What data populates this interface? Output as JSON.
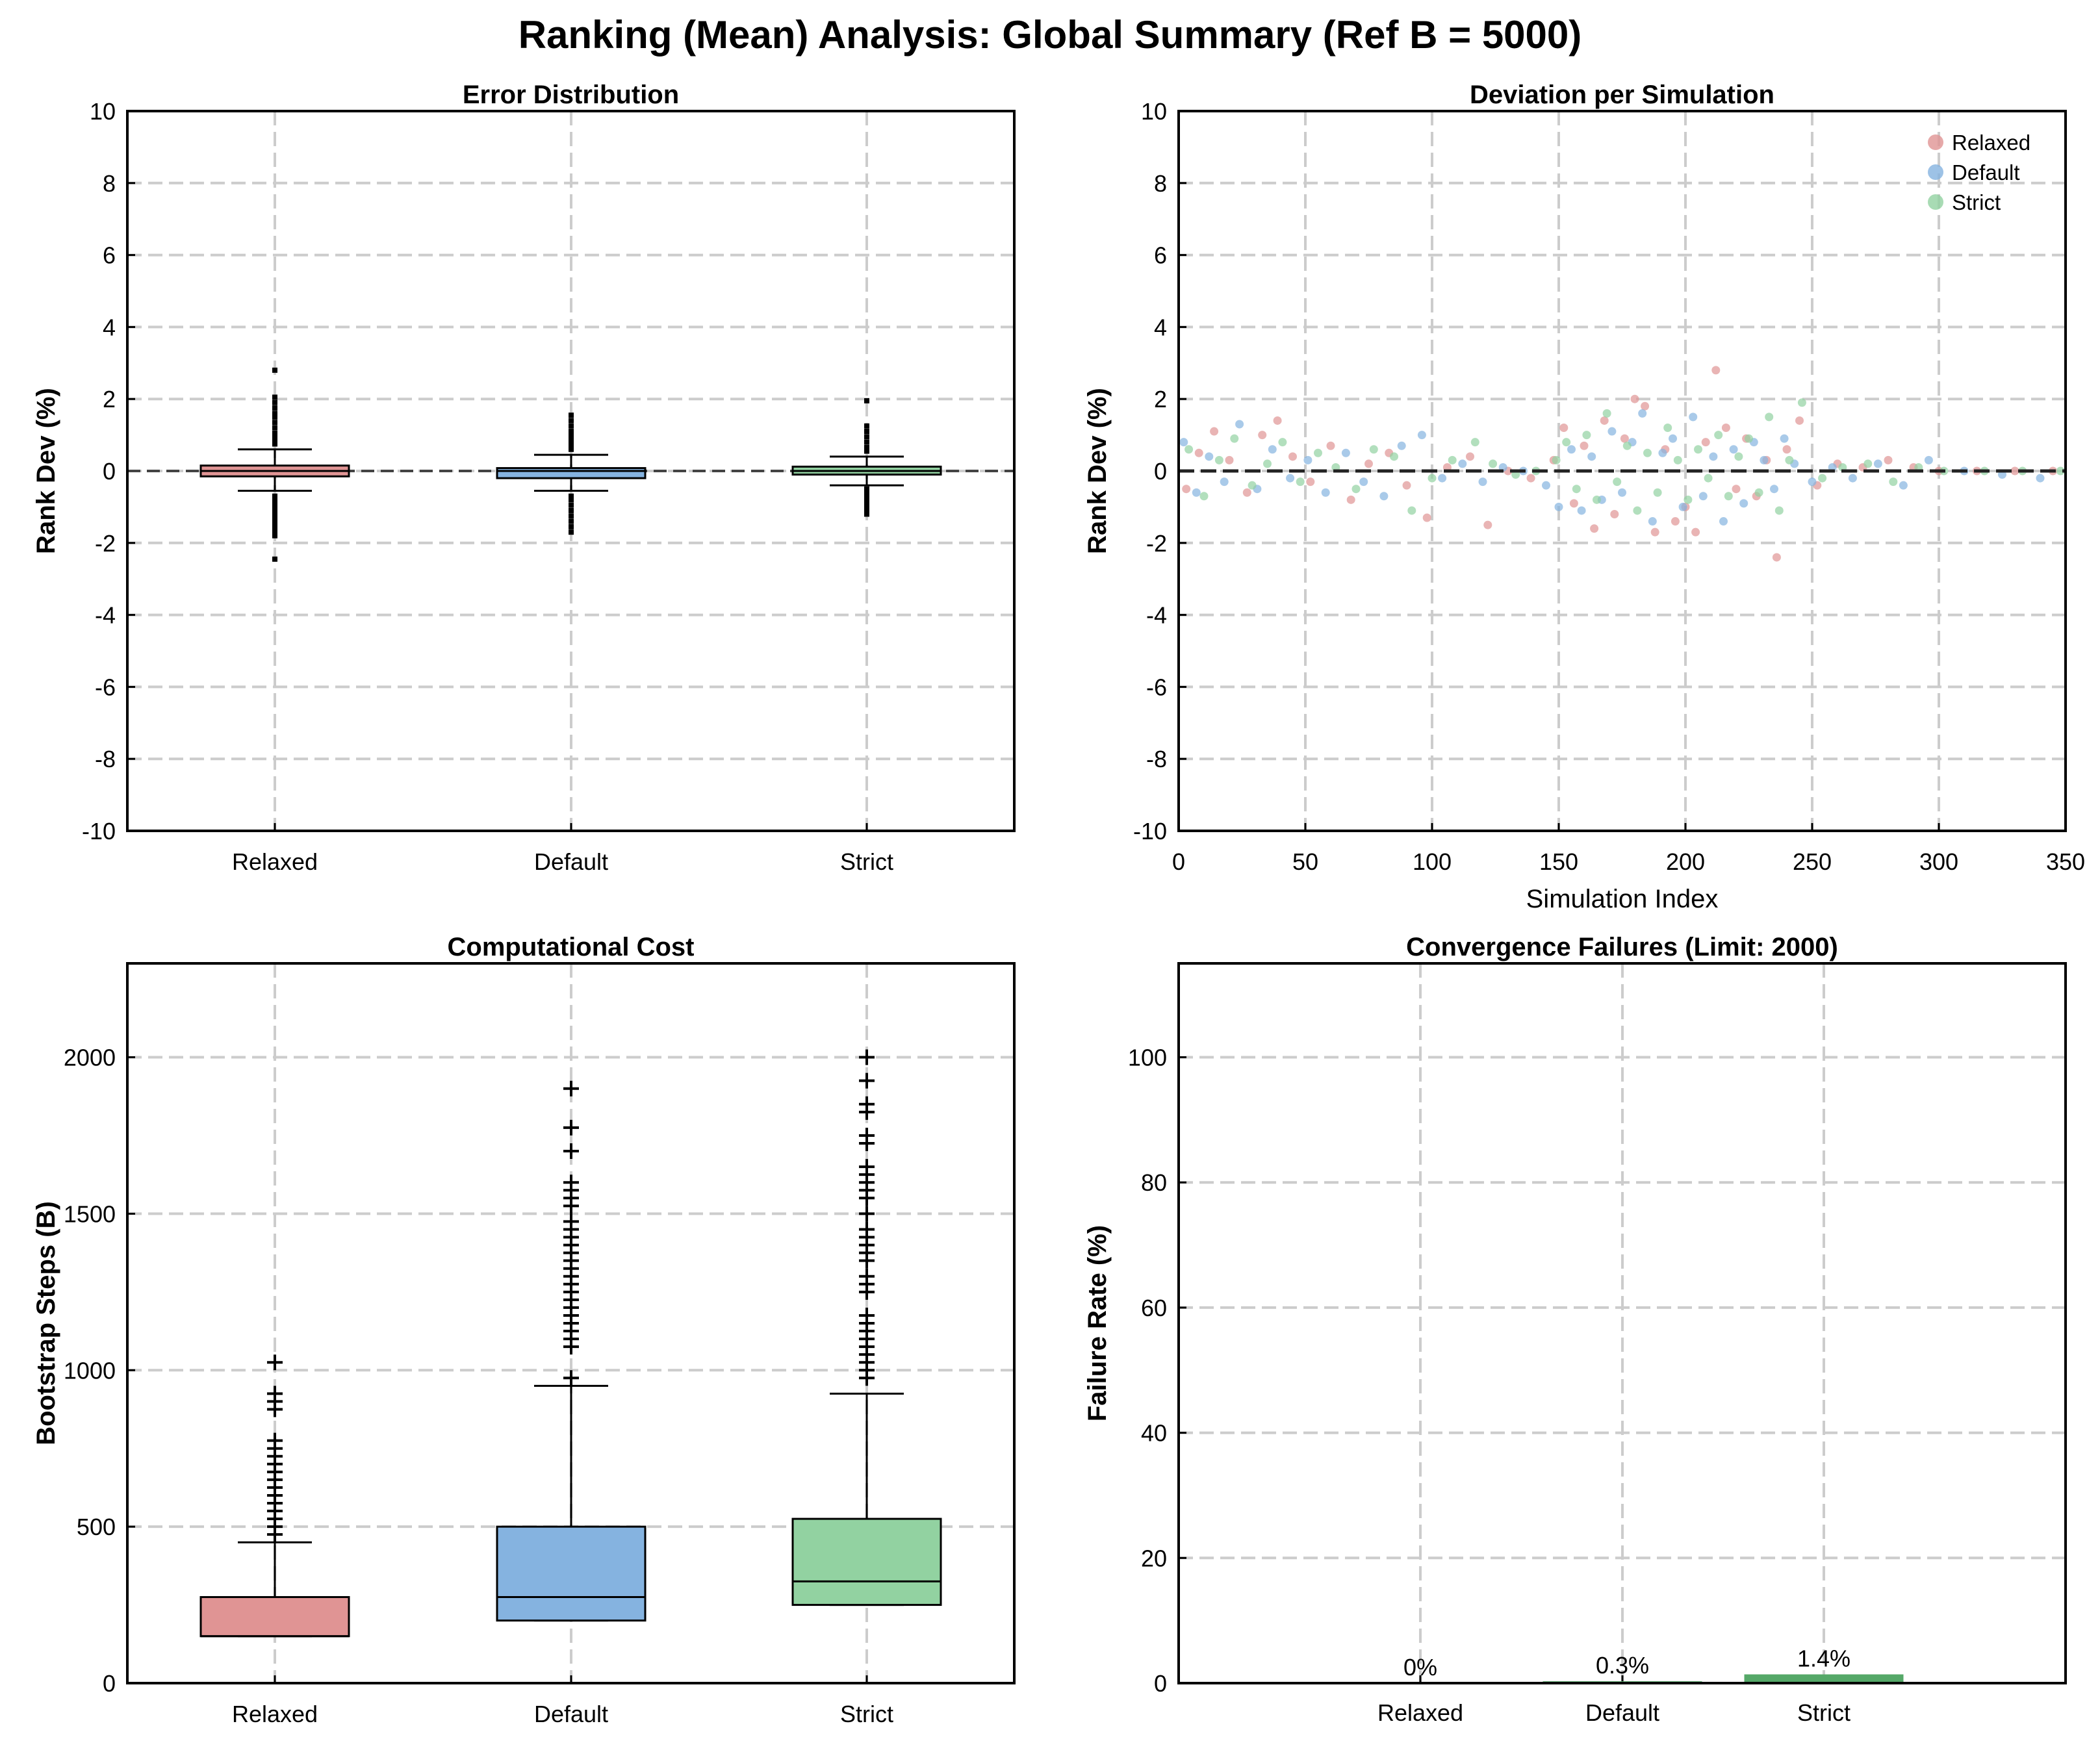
{
  "suptitle": "Ranking (Mean) Analysis: Global Summary (Ref B = 5000)",
  "colors": {
    "relaxed": "#e09494",
    "default": "#85b3e0",
    "strict": "#92d2a1",
    "strict_bar": "#55a868",
    "grid": "#cccccc"
  },
  "chart_data": [
    {
      "type": "box",
      "title": "Error Distribution",
      "xlabel": "",
      "ylabel": "Rank Dev (%)",
      "ylim": [
        -10,
        10
      ],
      "yticks": [
        -10,
        -8,
        -6,
        -4,
        -2,
        0,
        2,
        4,
        6,
        8,
        10
      ],
      "reference_line": 0,
      "categories": [
        "Relaxed",
        "Default",
        "Strict"
      ],
      "boxes": [
        {
          "name": "Relaxed",
          "q1": -0.15,
          "median": 0.0,
          "q3": 0.15,
          "whisker_low": -0.55,
          "whisker_high": 0.6,
          "outliers": [
            2.8,
            2.05,
            1.9,
            1.75,
            1.6,
            1.5,
            1.35,
            1.2,
            1.05,
            0.95,
            0.85,
            0.75,
            -0.7,
            -0.8,
            -0.9,
            -1.0,
            -1.1,
            -1.2,
            -1.3,
            -1.4,
            -1.5,
            -1.6,
            -1.7,
            -1.8,
            -2.45
          ]
        },
        {
          "name": "Default",
          "q1": -0.2,
          "median": 0.0,
          "q3": 0.08,
          "whisker_low": -0.55,
          "whisker_high": 0.45,
          "outliers": [
            1.55,
            1.4,
            1.25,
            1.1,
            1.0,
            0.9,
            0.8,
            0.7,
            0.6,
            -0.7,
            -0.8,
            -0.95,
            -1.1,
            -1.25,
            -1.4,
            -1.55,
            -1.7
          ]
        },
        {
          "name": "Strict",
          "q1": -0.1,
          "median": 0.0,
          "q3": 0.12,
          "whisker_low": -0.4,
          "whisker_high": 0.4,
          "outliers": [
            1.95,
            1.25,
            1.1,
            0.95,
            0.8,
            0.65,
            0.55,
            -0.5,
            -0.6,
            -0.7,
            -0.8,
            -0.9,
            -1.0,
            -1.1,
            -1.2
          ]
        }
      ]
    },
    {
      "type": "scatter",
      "title": "Deviation per Simulation",
      "xlabel": "Simulation Index",
      "ylabel": "Rank Dev (%)",
      "xlim": [
        0,
        350
      ],
      "ylim": [
        -10,
        10
      ],
      "xticks": [
        0,
        50,
        100,
        150,
        200,
        250,
        300,
        350
      ],
      "yticks": [
        -10,
        -8,
        -6,
        -4,
        -2,
        0,
        2,
        4,
        6,
        8,
        10
      ],
      "reference_line": 0,
      "legend": [
        "Relaxed",
        "Default",
        "Strict"
      ],
      "legend_position": "upper right",
      "series": [
        {
          "name": "Relaxed",
          "x": [
            3,
            8,
            14,
            20,
            27,
            33,
            39,
            45,
            52,
            60,
            68,
            75,
            83,
            90,
            98,
            106,
            115,
            122,
            130,
            139,
            148,
            152,
            156,
            160,
            164,
            168,
            172,
            176,
            180,
            184,
            188,
            192,
            196,
            200,
            204,
            208,
            212,
            216,
            220,
            224,
            228,
            232,
            236,
            240,
            245,
            252,
            260,
            270,
            280,
            290,
            300,
            315,
            330,
            345
          ],
          "y": [
            -0.5,
            0.5,
            1.1,
            0.3,
            -0.6,
            1.0,
            1.4,
            0.4,
            -0.3,
            0.7,
            -0.8,
            0.2,
            0.5,
            -0.4,
            -1.3,
            0.1,
            0.4,
            -1.5,
            0.0,
            -0.2,
            0.3,
            1.2,
            -0.9,
            0.7,
            -1.6,
            1.4,
            -1.2,
            0.9,
            2.0,
            1.8,
            -1.7,
            0.6,
            -1.4,
            -1.0,
            -1.7,
            0.8,
            2.8,
            1.2,
            -0.5,
            0.9,
            -0.7,
            0.3,
            -2.4,
            0.6,
            1.4,
            -0.4,
            0.2,
            0.1,
            0.3,
            0.1,
            0.0,
            0.0,
            0.0,
            0.0
          ]
        },
        {
          "name": "Default",
          "x": [
            2,
            7,
            12,
            18,
            24,
            31,
            37,
            44,
            51,
            58,
            66,
            73,
            81,
            88,
            96,
            104,
            112,
            120,
            128,
            136,
            145,
            150,
            155,
            159,
            163,
            167,
            171,
            175,
            179,
            183,
            187,
            191,
            195,
            199,
            203,
            207,
            211,
            215,
            219,
            223,
            227,
            231,
            235,
            239,
            243,
            250,
            258,
            266,
            276,
            286,
            296,
            310,
            325,
            340
          ],
          "y": [
            0.8,
            -0.6,
            0.4,
            -0.3,
            1.3,
            -0.5,
            0.6,
            -0.2,
            0.3,
            -0.6,
            0.5,
            -0.3,
            -0.7,
            0.7,
            1.0,
            -0.2,
            0.2,
            -0.3,
            0.1,
            0.0,
            -0.4,
            -1.0,
            0.6,
            -1.1,
            0.4,
            -0.8,
            1.1,
            -0.6,
            0.8,
            1.6,
            -1.4,
            0.5,
            0.9,
            -1.0,
            1.5,
            -0.7,
            0.4,
            -1.4,
            0.6,
            -0.9,
            0.8,
            0.3,
            -0.5,
            0.9,
            0.2,
            -0.3,
            0.1,
            -0.2,
            0.2,
            -0.4,
            0.3,
            0.0,
            -0.1,
            -0.2
          ]
        },
        {
          "name": "Strict",
          "x": [
            4,
            10,
            16,
            22,
            29,
            35,
            41,
            48,
            55,
            62,
            70,
            77,
            85,
            92,
            100,
            108,
            117,
            124,
            133,
            141,
            149,
            153,
            157,
            161,
            165,
            169,
            173,
            177,
            181,
            185,
            189,
            193,
            197,
            201,
            205,
            209,
            213,
            217,
            221,
            225,
            229,
            233,
            237,
            241,
            246,
            254,
            262,
            272,
            282,
            292,
            302,
            318,
            333,
            348
          ],
          "y": [
            0.6,
            -0.7,
            0.3,
            0.9,
            -0.4,
            0.2,
            0.8,
            -0.3,
            0.5,
            0.1,
            -0.5,
            0.6,
            0.4,
            -1.1,
            -0.2,
            0.3,
            0.8,
            0.2,
            -0.1,
            0.0,
            0.3,
            0.8,
            -0.5,
            1.0,
            -0.8,
            1.6,
            -0.3,
            0.7,
            -1.1,
            0.5,
            -0.6,
            1.2,
            0.3,
            -0.8,
            0.6,
            -0.2,
            1.0,
            -0.7,
            0.4,
            0.9,
            -0.6,
            1.5,
            -1.1,
            0.3,
            1.9,
            -0.2,
            0.1,
            0.2,
            -0.3,
            0.1,
            0.0,
            0.0,
            0.0,
            0.0
          ]
        }
      ]
    },
    {
      "type": "box",
      "title": "Computational Cost",
      "xlabel": "",
      "ylabel": "Bootstrap Steps (B)",
      "ylim": [
        0,
        2300
      ],
      "yticks": [
        0,
        500,
        1000,
        1500,
        2000
      ],
      "categories": [
        "Relaxed",
        "Default",
        "Strict"
      ],
      "boxes": [
        {
          "name": "Relaxed",
          "q1": 150,
          "median": 150,
          "q3": 275,
          "whisker_low": 150,
          "whisker_high": 450,
          "outliers": [
            1025,
            925,
            900,
            875,
            775,
            750,
            725,
            700,
            675,
            650,
            625,
            600,
            575,
            550,
            525,
            500,
            475
          ]
        },
        {
          "name": "Default",
          "q1": 200,
          "median": 275,
          "q3": 500,
          "whisker_low": 200,
          "whisker_high": 950,
          "outliers": [
            1900,
            1775,
            1700,
            1600,
            1575,
            1550,
            1525,
            1475,
            1450,
            1425,
            1400,
            1375,
            1350,
            1325,
            1300,
            1275,
            1250,
            1225,
            1200,
            1175,
            1150,
            1125,
            1100,
            1075,
            975
          ]
        },
        {
          "name": "Strict",
          "q1": 250,
          "median": 325,
          "q3": 525,
          "whisker_low": 250,
          "whisker_high": 925,
          "outliers": [
            2000,
            1925,
            1850,
            1825,
            1750,
            1725,
            1650,
            1625,
            1600,
            1575,
            1550,
            1500,
            1450,
            1425,
            1400,
            1375,
            1350,
            1300,
            1275,
            1250,
            1175,
            1150,
            1125,
            1100,
            1075,
            1050,
            1025,
            1000,
            975
          ]
        }
      ]
    },
    {
      "type": "bar",
      "title": "Convergence Failures (Limit: 2000)",
      "xlabel": "",
      "ylabel": "Failure Rate (%)",
      "ylim": [
        0,
        115
      ],
      "yticks": [
        0,
        20,
        40,
        60,
        80,
        100
      ],
      "categories": [
        "Relaxed",
        "Default",
        "Strict"
      ],
      "values": [
        0,
        0.3,
        1.4
      ],
      "value_labels": [
        "0%",
        "0.3%",
        "1.4%"
      ]
    }
  ]
}
